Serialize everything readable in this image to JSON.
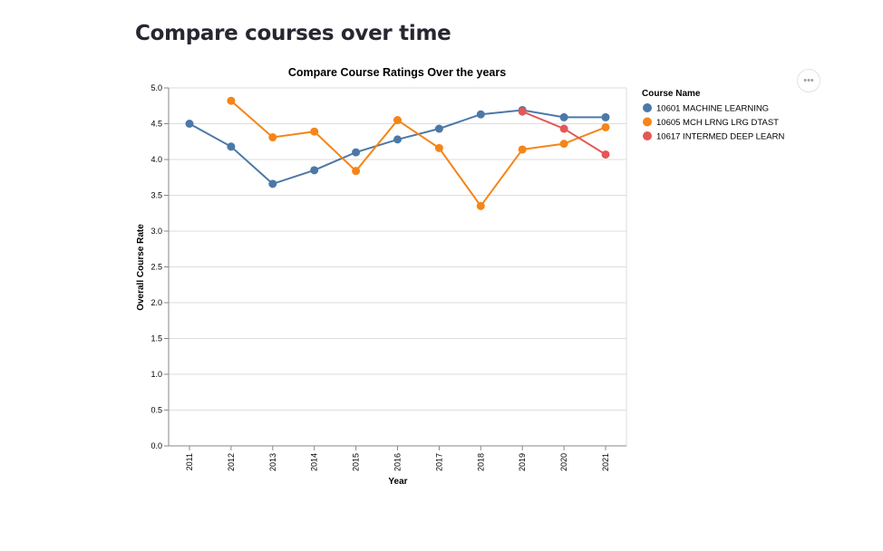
{
  "page": {
    "heading": "Compare courses over time"
  },
  "toolbar": {
    "more_icon": "ellipsis-icon",
    "more_glyph": "•••"
  },
  "chart_data": {
    "type": "line",
    "title": "Compare Course Ratings Over the years",
    "xlabel": "Year",
    "ylabel": "Overall Course Rate",
    "x": [
      "2011",
      "2012",
      "2013",
      "2014",
      "2015",
      "2016",
      "2017",
      "2018",
      "2019",
      "2020",
      "2021"
    ],
    "ylim": [
      0,
      5
    ],
    "yticks": [
      "0.0",
      "0.5",
      "1.0",
      "1.5",
      "2.0",
      "2.5",
      "3.0",
      "3.5",
      "4.0",
      "4.5",
      "5.0"
    ],
    "grid": true,
    "legend_title": "Course Name",
    "legend_position": "top-right",
    "series": [
      {
        "name": "10601 MACHINE LEARNING",
        "color": "#4c78a8",
        "values": [
          4.5,
          4.18,
          3.66,
          3.85,
          4.1,
          4.28,
          4.43,
          4.63,
          4.69,
          4.59,
          4.59
        ]
      },
      {
        "name": "10605 MCH LRNG LRG DTAST",
        "color": "#f58518",
        "values": [
          null,
          4.82,
          4.31,
          4.39,
          3.84,
          4.55,
          4.16,
          3.35,
          4.14,
          4.22,
          4.45
        ]
      },
      {
        "name": "10617 INTERMED DEEP LEARN",
        "color": "#e45756",
        "values": [
          null,
          null,
          null,
          null,
          null,
          null,
          null,
          null,
          4.67,
          4.43,
          4.07
        ]
      }
    ]
  }
}
